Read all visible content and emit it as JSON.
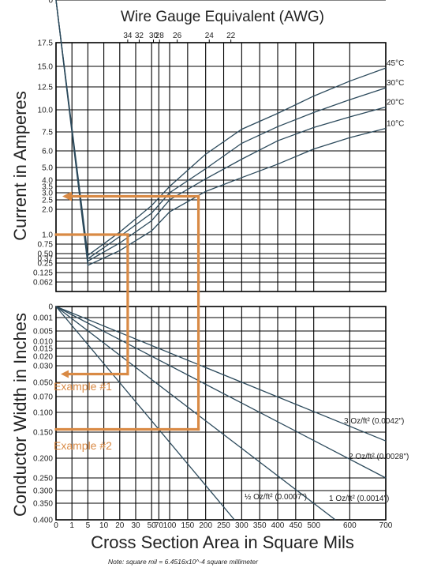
{
  "chart_data": {
    "type": "line",
    "title": "Wire Gauge Equivalent (AWG)",
    "awg_ticks": [
      "34",
      "32",
      "30",
      "28",
      "26",
      "24",
      "22"
    ],
    "awg_area": [
      25.0,
      34.4,
      55.0,
      72.0,
      121.0,
      210.0,
      270.0
    ],
    "xlabel": "Cross Section Area in Square Mils",
    "x_tick_labels": [
      "0",
      "1",
      "5",
      "10",
      "20",
      "30",
      "50",
      "70",
      "100",
      "150",
      "200",
      "250",
      "300",
      "350",
      "400",
      "450",
      "500",
      "600",
      "700"
    ],
    "x_ticks": [
      0,
      1,
      5,
      10,
      20,
      30,
      50,
      70,
      100,
      150,
      200,
      250,
      300,
      350,
      400,
      450,
      500,
      600,
      700
    ],
    "top": {
      "ylabel": "Current in Amperes",
      "y_tick_labels": [
        "0",
        "0.062",
        "0.125",
        "0.25",
        "0.37",
        "0.50",
        "0.75",
        "1.0",
        "2.0",
        "2.5",
        "3.0",
        "3.5",
        "4.0",
        "5.0",
        "6.0",
        "7.5",
        "10.0",
        "12.5",
        "15.0",
        "17.5"
      ],
      "y_ticks": [
        0,
        0.062,
        0.125,
        0.25,
        0.37,
        0.5,
        0.75,
        1.0,
        2.0,
        2.5,
        3.0,
        3.5,
        4.0,
        5.0,
        6.0,
        7.5,
        10.0,
        12.5,
        15.0,
        17.5
      ],
      "series": [
        {
          "name": "45°C",
          "x": [
            0,
            5,
            20,
            50,
            100,
            200,
            300,
            400,
            500,
            600,
            700
          ],
          "y": [
            0,
            0.45,
            1.1,
            2.2,
            3.5,
            5.8,
            7.8,
            9.6,
            11.5,
            13.2,
            14.8
          ]
        },
        {
          "name": "30°C",
          "x": [
            0,
            5,
            20,
            50,
            100,
            200,
            300,
            400,
            500,
            600,
            700
          ],
          "y": [
            0,
            0.36,
            0.95,
            1.85,
            3.0,
            4.9,
            6.6,
            8.1,
            9.7,
            11.1,
            12.4
          ]
        },
        {
          "name": "20°C",
          "x": [
            0,
            5,
            20,
            50,
            100,
            200,
            300,
            400,
            500,
            600,
            700
          ],
          "y": [
            0,
            0.3,
            0.78,
            1.55,
            2.5,
            4.1,
            5.5,
            6.8,
            8.0,
            9.2,
            10.3
          ]
        },
        {
          "name": "10°C",
          "x": [
            0,
            5,
            20,
            50,
            100,
            200,
            300,
            400,
            500,
            600,
            700
          ],
          "y": [
            0,
            0.22,
            0.58,
            1.15,
            1.9,
            3.1,
            4.2,
            5.2,
            6.15,
            7.05,
            7.9
          ]
        }
      ]
    },
    "bottom": {
      "ylabel": "Conductor Width in Inches",
      "y_tick_labels": [
        "0",
        "0.001",
        "0.005",
        "0.010",
        "0.015",
        "0.020",
        "0.030",
        "0.050",
        "0.070",
        "0.100",
        "0.150",
        "0.200",
        "0.250",
        "0.300",
        "0.350",
        "0.400"
      ],
      "y_ticks": [
        0,
        0.001,
        0.005,
        0.01,
        0.015,
        0.02,
        0.03,
        0.05,
        0.07,
        0.1,
        0.15,
        0.2,
        0.25,
        0.3,
        0.35,
        0.4
      ],
      "series": [
        {
          "name": "3 Oz/ft² (0.0042\")",
          "x": [
            0,
            700
          ],
          "y": [
            0,
            0.167
          ]
        },
        {
          "name": "2 Oz/ft² (0.0028\")",
          "x": [
            0,
            700
          ],
          "y": [
            0,
            0.25
          ]
        },
        {
          "name": "1 Oz/ft² (0.0014\")",
          "x": [
            0,
            560
          ],
          "y": [
            0,
            0.4
          ]
        },
        {
          "name": "½ Oz/ft² (0.0007\")",
          "x": [
            0,
            280
          ],
          "y": [
            0,
            0.4
          ]
        }
      ]
    },
    "examples": [
      {
        "label": "Example #1",
        "current": 1.0,
        "area": 25,
        "width": 0.04
      },
      {
        "label": "Example #2",
        "current": 2.75,
        "area": 180,
        "width": 0.143
      }
    ],
    "note": "Note: square mil = 6.4516x10^-4 square millimeter",
    "colors": {
      "grid": "#000000",
      "curve": "#2c4a5c",
      "example": "#d98a45"
    }
  }
}
